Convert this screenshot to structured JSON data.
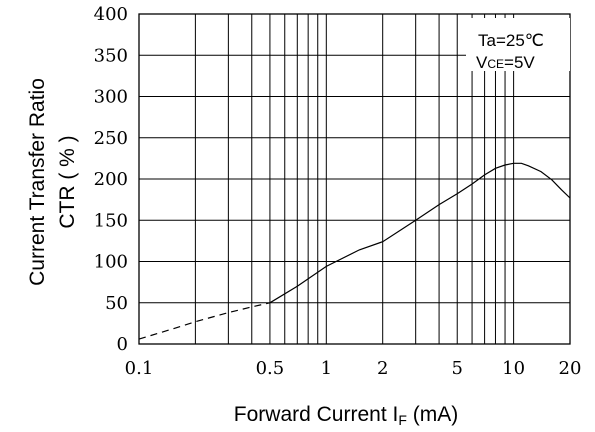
{
  "chart_data": {
    "type": "line",
    "xlabel_main": "Forward Current I",
    "xlabel_sub": "F",
    "xlabel_unit": " (mA)",
    "ylabel_line1": "Current Transfer Ratio",
    "ylabel_line2": "CTR ( % )",
    "annotation_ta": "Ta=25℃",
    "annotation_vce_main": "V",
    "annotation_vce_sub": "CE",
    "annotation_vce_value": "=5V",
    "x_scale": "log",
    "xlim": [
      0.1,
      20
    ],
    "ylim": [
      0,
      400
    ],
    "x_ticks": [
      {
        "value": 0.1,
        "label": "0.1"
      },
      {
        "value": 0.5,
        "label": "0.5"
      },
      {
        "value": 1,
        "label": "1"
      },
      {
        "value": 2,
        "label": "2"
      },
      {
        "value": 5,
        "label": "5"
      },
      {
        "value": 10,
        "label": "10"
      },
      {
        "value": 20,
        "label": "20"
      }
    ],
    "y_ticks": [
      0,
      50,
      100,
      150,
      200,
      250,
      300,
      350,
      400
    ],
    "grid": true,
    "series": [
      {
        "points": [
          [
            0.1,
            6
          ],
          [
            0.15,
            18
          ],
          [
            0.2,
            27
          ],
          [
            0.3,
            38
          ],
          [
            0.4,
            45
          ],
          [
            0.5,
            50
          ],
          [
            0.7,
            70
          ],
          [
            1,
            94
          ],
          [
            1.5,
            114
          ],
          [
            2,
            124
          ],
          [
            3,
            150
          ],
          [
            4,
            169
          ],
          [
            5,
            182
          ],
          [
            6,
            194
          ],
          [
            7,
            205
          ],
          [
            8,
            213
          ],
          [
            9,
            217
          ],
          [
            10,
            219
          ],
          [
            11,
            219
          ],
          [
            12,
            216
          ],
          [
            14,
            209
          ],
          [
            16,
            199
          ],
          [
            18,
            187
          ],
          [
            20,
            177
          ]
        ],
        "dashed_until_x": 0.5
      }
    ]
  }
}
